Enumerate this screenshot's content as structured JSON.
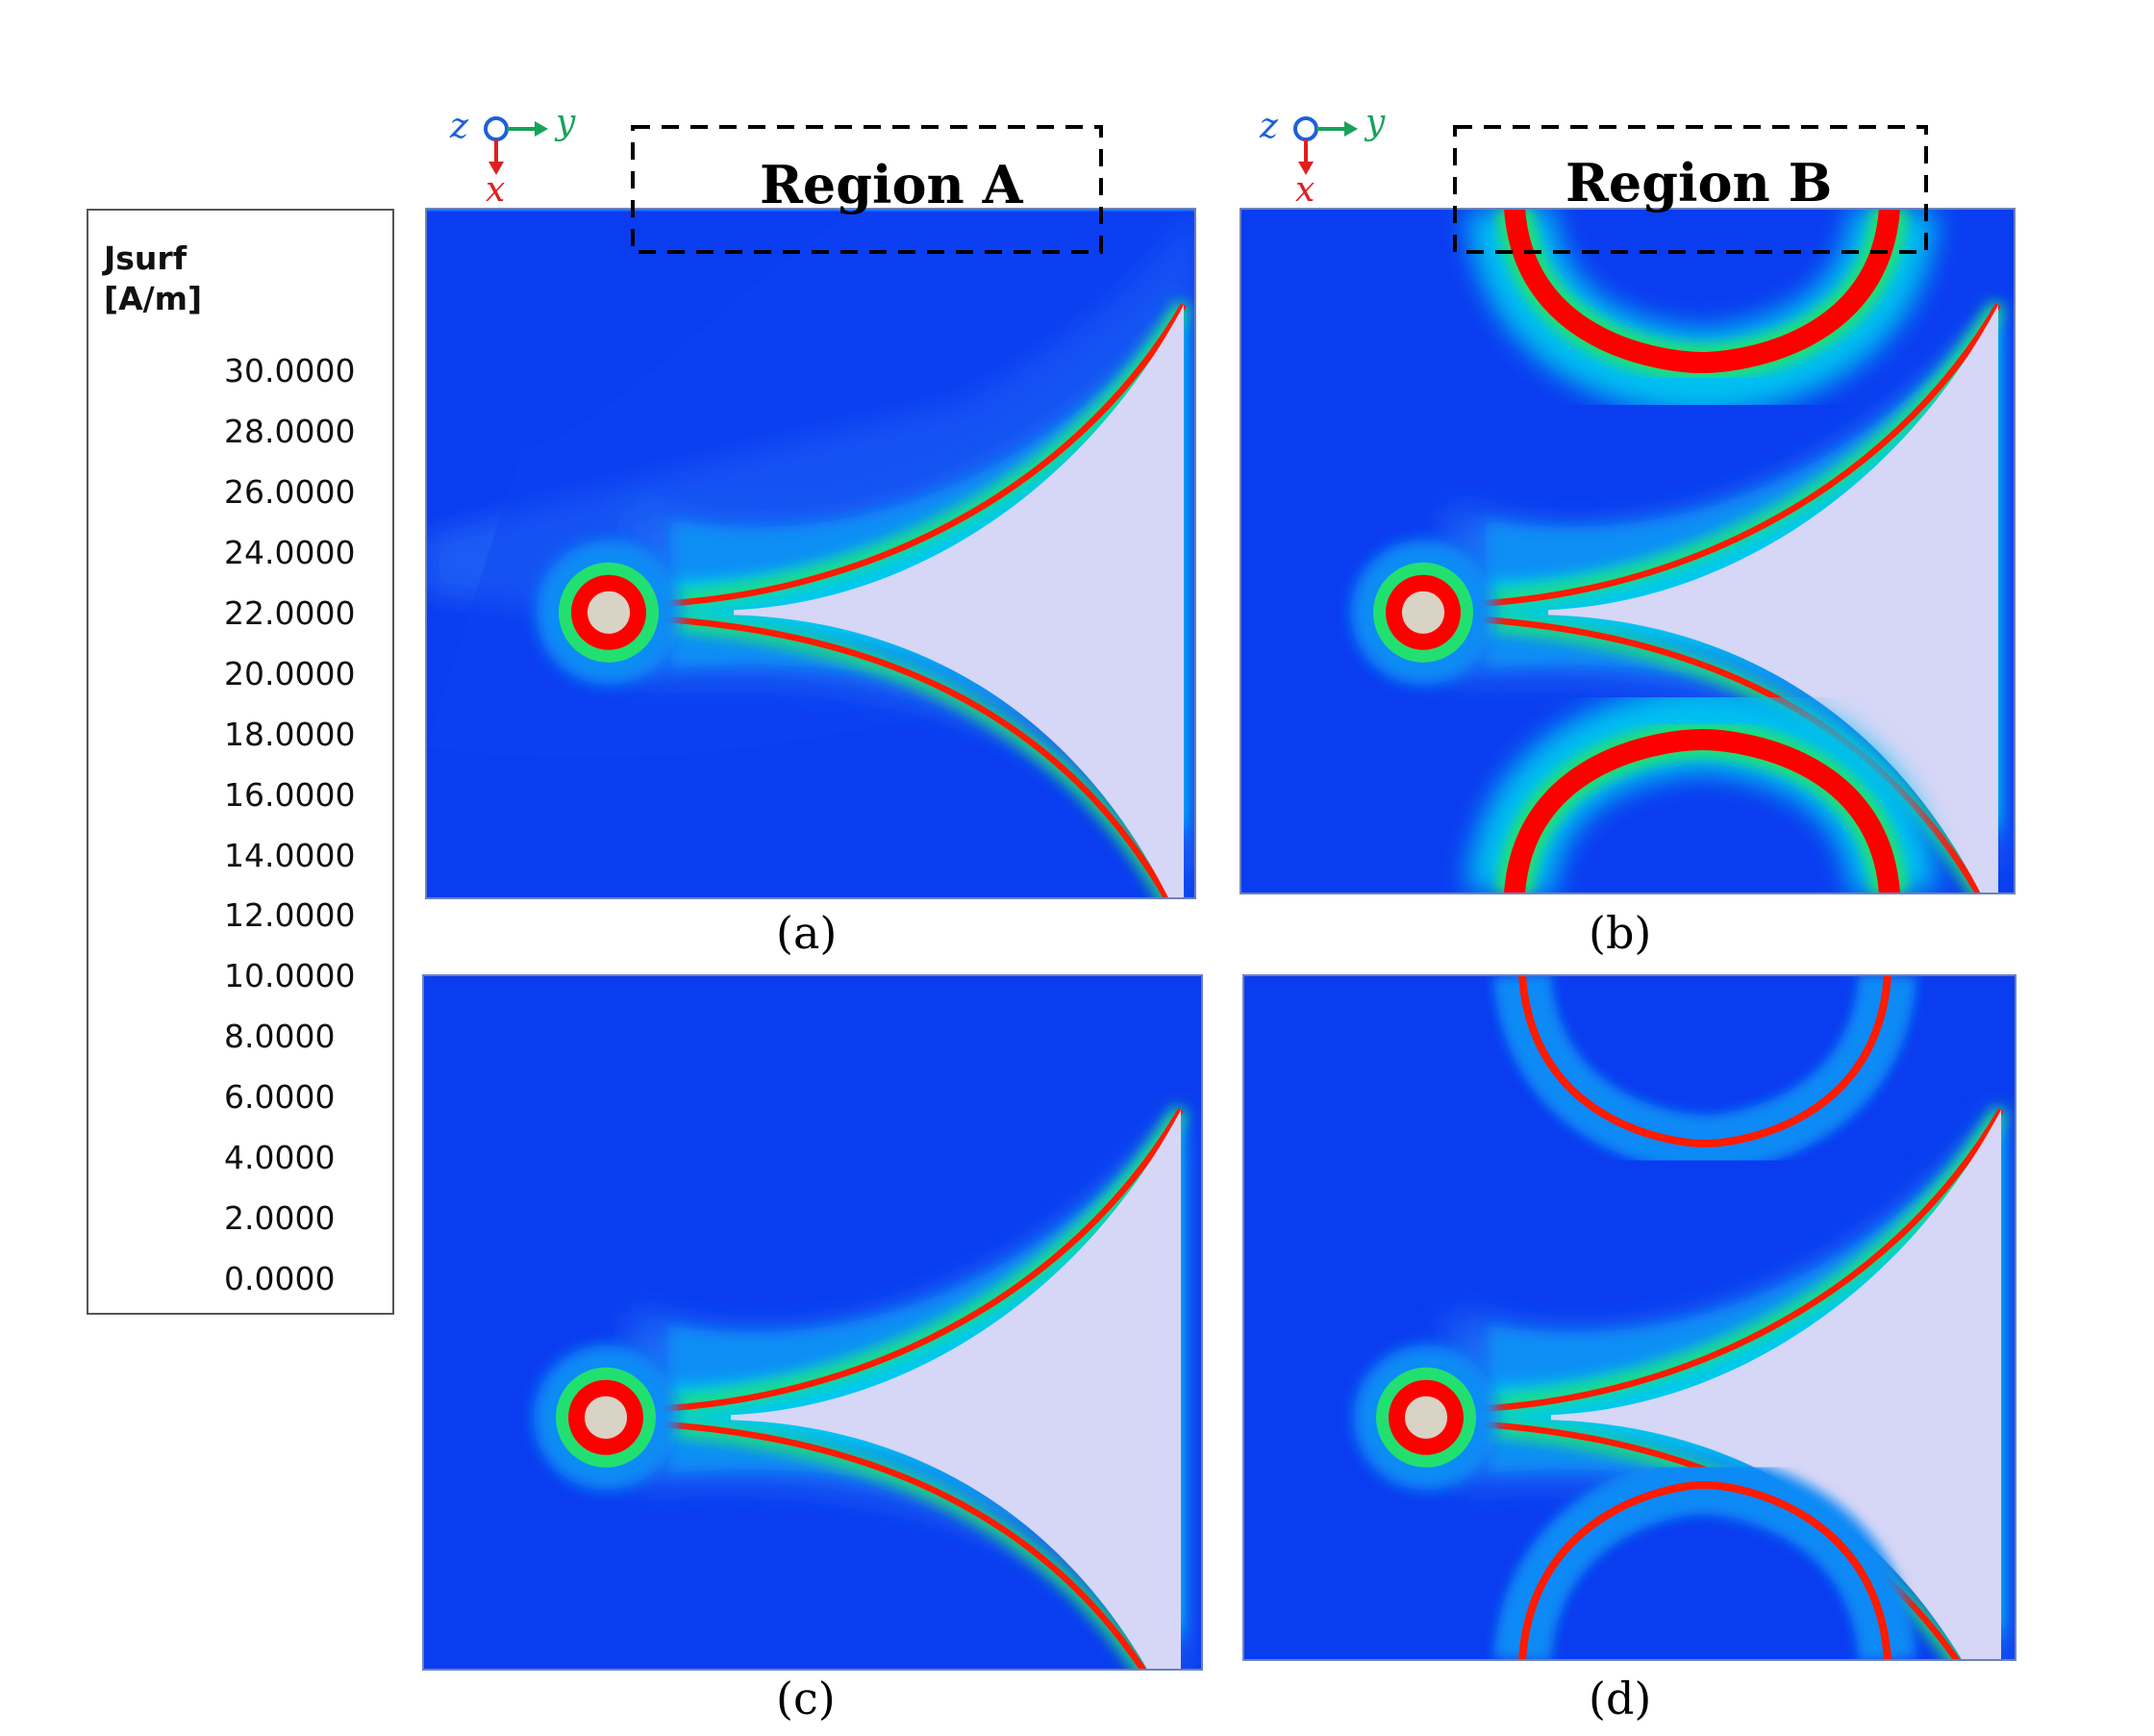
{
  "legend": {
    "title_line1": "Jsurf",
    "title_line2": "[A/m]",
    "ticks": [
      "30.0000",
      "28.0000",
      "26.0000",
      "24.0000",
      "22.0000",
      "20.0000",
      "18.0000",
      "16.0000",
      "14.0000",
      "12.0000",
      "10.0000",
      "8.0000",
      "6.0000",
      "4.0000",
      "2.0000",
      "0.0000"
    ],
    "band_colors": [
      "#ff0000",
      "#ff4a00",
      "#ff9000",
      "#ffd000",
      "#dcf000",
      "#a8f000",
      "#55e83a",
      "#22d01c",
      "#00e51a",
      "#2bdd55",
      "#00e8a0",
      "#00e2e2",
      "#00b8f0",
      "#0077f5",
      "#0044f0",
      "#0000f5"
    ]
  },
  "axes": {
    "z": "z",
    "y": "y",
    "x": "x"
  },
  "regions": {
    "a": "Region A",
    "b": "Region B"
  },
  "captions": {
    "a": "(a)",
    "b": "(b)",
    "c": "(c)",
    "d": "(d)"
  },
  "colors": {
    "background": "#0a3cf0",
    "hot": "#ff0000",
    "substrate": "#d4d4f5"
  }
}
